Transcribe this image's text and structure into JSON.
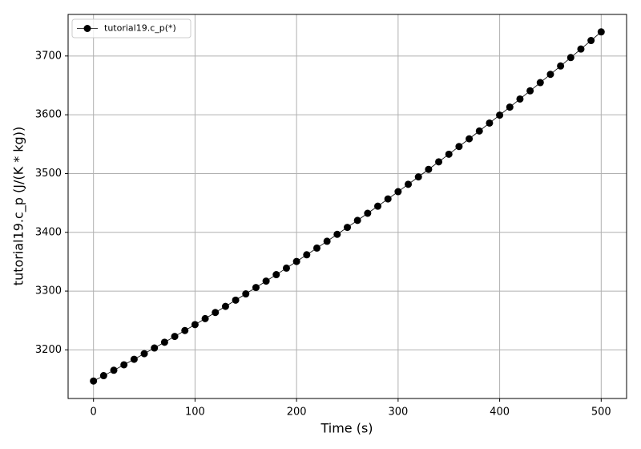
{
  "chart_data": {
    "type": "line",
    "x_label": "Time (s)",
    "y_label": "tutorial19.c_p (J/(K * kg))",
    "x": [
      0,
      10,
      20,
      30,
      40,
      50,
      60,
      70,
      80,
      90,
      100,
      110,
      120,
      130,
      140,
      150,
      160,
      170,
      180,
      190,
      200,
      210,
      220,
      230,
      240,
      250,
      260,
      270,
      280,
      290,
      300,
      310,
      320,
      330,
      340,
      350,
      360,
      370,
      380,
      390,
      400,
      410,
      420,
      430,
      440,
      450,
      460,
      470,
      480,
      490,
      500
    ],
    "series": [
      {
        "name": "tutorial19.c_p(*)",
        "color": "#000000",
        "values": [
          3147.0,
          3156.1,
          3165.3,
          3174.6,
          3184.0,
          3193.6,
          3203.2,
          3213.0,
          3222.9,
          3232.9,
          3243.0,
          3253.2,
          3263.6,
          3274.0,
          3284.6,
          3295.3,
          3306.1,
          3317.0,
          3328.0,
          3339.1,
          3350.4,
          3361.8,
          3373.2,
          3384.8,
          3396.6,
          3408.4,
          3420.3,
          3432.4,
          3444.5,
          3456.8,
          3469.2,
          3481.7,
          3494.3,
          3507.1,
          3519.9,
          3532.9,
          3546.0,
          3559.1,
          3572.4,
          3585.9,
          3599.4,
          3613.0,
          3626.8,
          3640.7,
          3654.7,
          3668.8,
          3683.0,
          3697.3,
          3711.8,
          3726.3,
          3741.0
        ]
      }
    ],
    "xlim": [
      -25,
      525
    ],
    "xticks": [
      0,
      100,
      200,
      300,
      400,
      500
    ],
    "ylim": [
      3117.3,
      3770.7
    ],
    "yticks": [
      3200,
      3300,
      3400,
      3500,
      3600,
      3700
    ],
    "grid": true,
    "legend": "upper-left"
  }
}
